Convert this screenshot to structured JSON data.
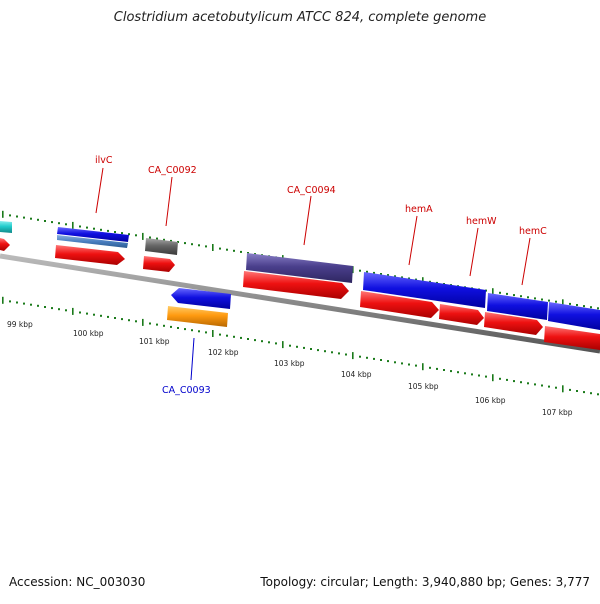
{
  "title": "Clostridium acetobutylicum ATCC 824, complete genome",
  "footer": {
    "accession": "Accession: NC_003030",
    "topology": "Topology: circular; Length: 3,940,880 bp; Genes: 3,777"
  },
  "axis_labels": [
    "99 kbp",
    "100 kbp",
    "101 kbp",
    "102 kbp",
    "103 kbp",
    "104 kbp",
    "105 kbp",
    "106 kbp",
    "107 kbp"
  ],
  "gene_labels": {
    "ilvC": "ilvC",
    "CA_C0092": "CA_C0092",
    "CA_C0094": "CA_C0094",
    "hemA": "hemA",
    "hemW": "hemW",
    "hemC": "hemC",
    "CA_C0093": "CA_C0093"
  },
  "colors": {
    "label_red": "#cc0000",
    "label_blue": "#0000cc",
    "tick_green": "#1a7a1a",
    "gene_blue": "#1010e0",
    "cds_red": "#ee1111",
    "purple": "#4a3f8c",
    "grey": "#666666",
    "orange": "#ff9a10",
    "cyan": "#22cccc",
    "steel": "#4a7fc0"
  }
}
